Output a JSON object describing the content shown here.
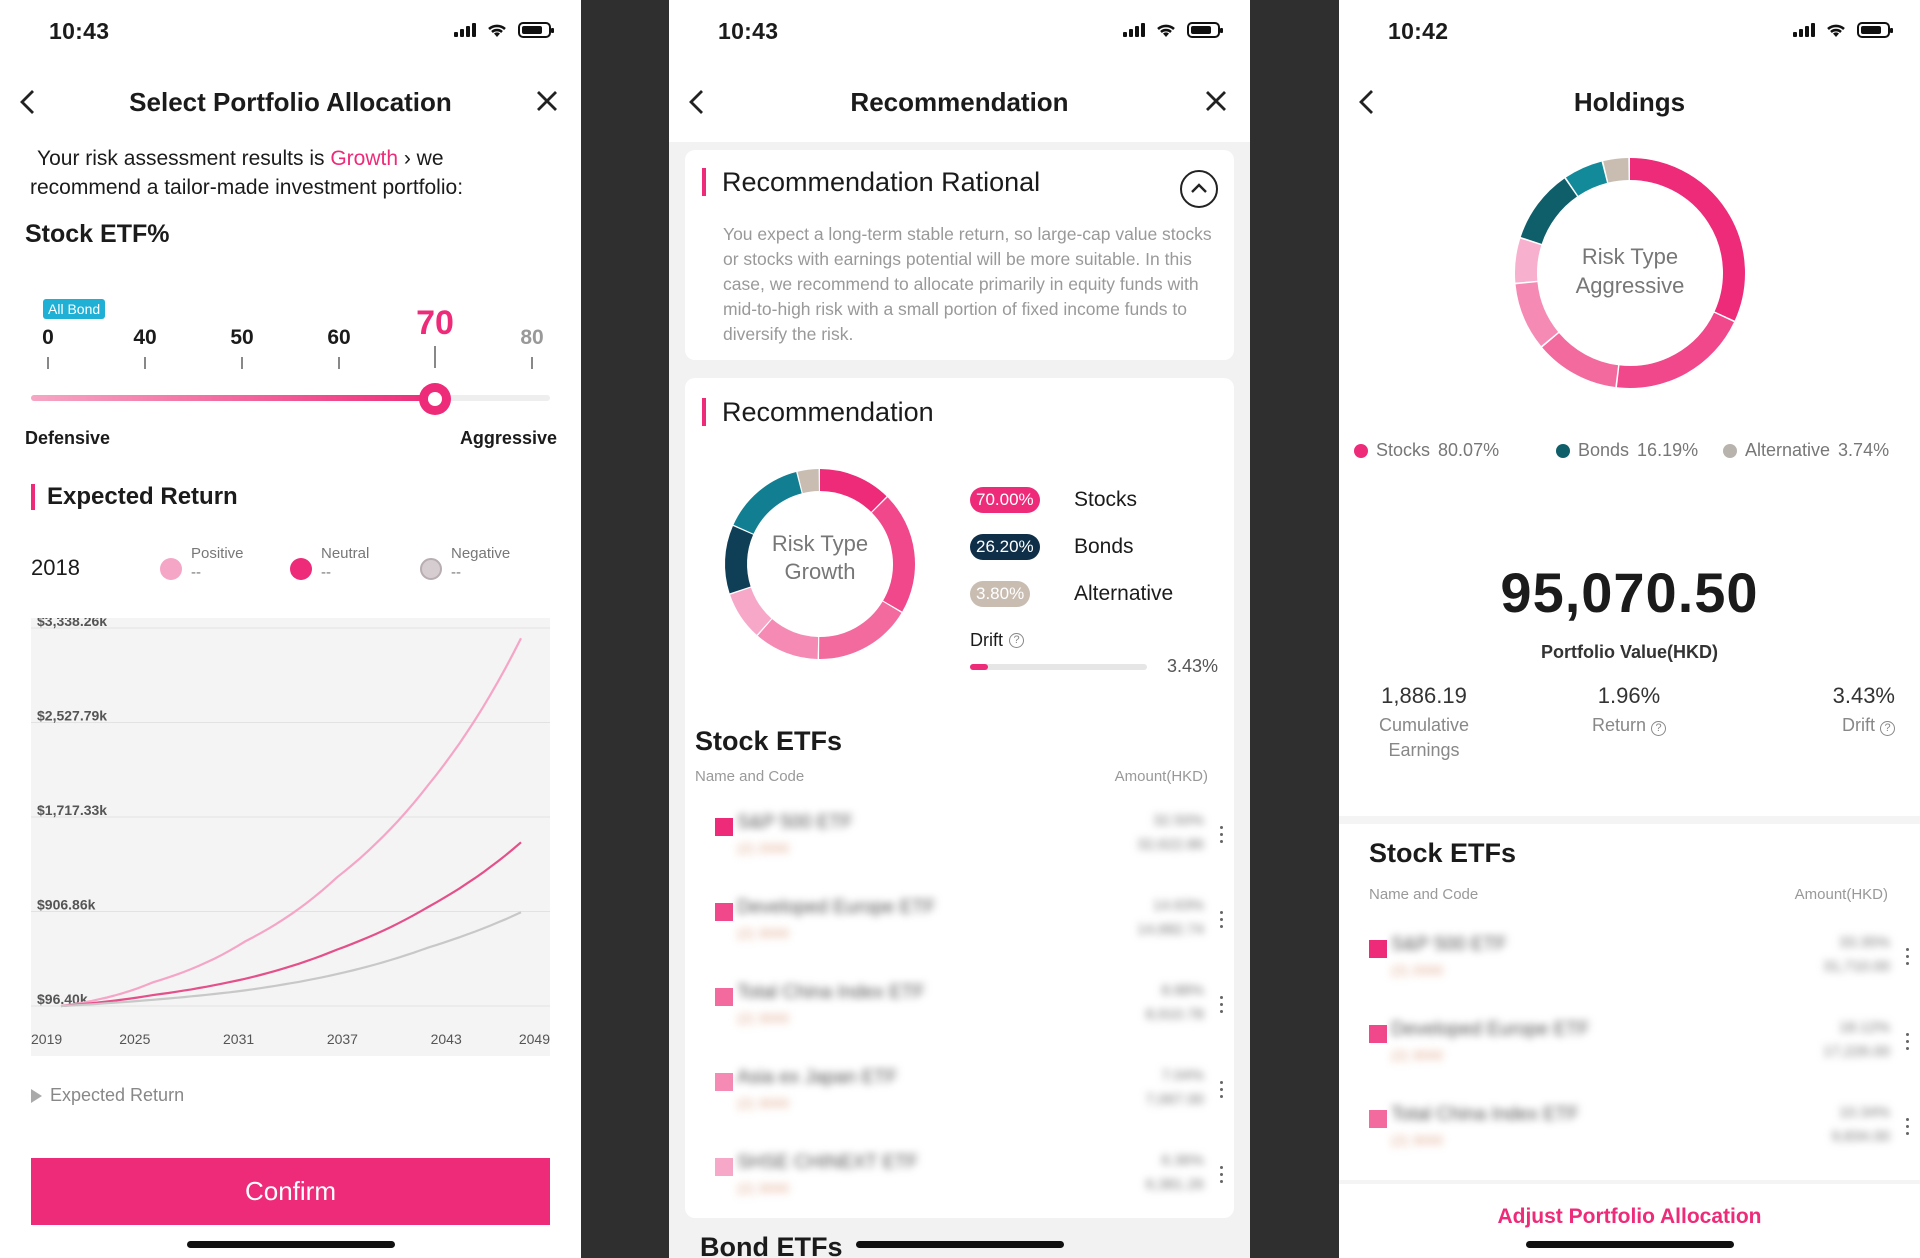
{
  "colors": {
    "accent": "#ee2b79",
    "navy": "#0f5f6b",
    "teal": "#0e8a9c",
    "beige": "#c9bdb2",
    "light_pink": "#f5a5c6"
  },
  "p1": {
    "time": "10:43",
    "title": "Select Portfolio Allocation",
    "intro_prefix": "Your risk assessment results is ",
    "intro_risk": "Growth",
    "intro_mid": " › we",
    "intro_line2": "recommend a tailor-made investment portfolio:",
    "stock_etf_label": "Stock ETF%",
    "all_bond_badge": "All Bond",
    "ticks": [
      "0",
      "40",
      "50",
      "60",
      "70",
      "80"
    ],
    "selected_value": 70,
    "defensive_label": "Defensive",
    "aggressive_label": "Aggressive",
    "expected_return_title": "Expected Return",
    "year": "2018",
    "legend": [
      {
        "name": "Positive",
        "value": "--",
        "color": "#f5a5c6"
      },
      {
        "name": "Neutral",
        "value": "--",
        "color": "#ee2b79"
      },
      {
        "name": "Negative",
        "value": "--",
        "color": "#c9bdb2"
      }
    ],
    "expected_return_toggle": "Expected Return",
    "confirm_label": "Confirm"
  },
  "chart_data": {
    "type": "line",
    "x": [
      2019,
      2025,
      2031,
      2037,
      2043,
      2049
    ],
    "x_tick_labels": [
      "2019",
      "2025",
      "2031",
      "2037",
      "2043",
      "2049"
    ],
    "y_tick_labels": [
      "$3,338.26k",
      "$2,527.79k",
      "$1,717.33k",
      "$906.86k",
      "$96.40k"
    ],
    "ylim": [
      96.4,
      3338.26
    ],
    "series": [
      {
        "name": "Positive",
        "color": "#f5a5c6",
        "values": [
          96,
          300,
          650,
          1200,
          2000,
          3250
        ]
      },
      {
        "name": "Neutral",
        "color": "#e4508a",
        "values": [
          96,
          190,
          330,
          580,
          950,
          1500
        ]
      },
      {
        "name": "Negative",
        "color": "#c8c8c8",
        "values": [
          96,
          150,
          230,
          370,
          600,
          900
        ]
      }
    ],
    "grid": true
  },
  "p2": {
    "time": "10:43",
    "title": "Recommendation",
    "rationale_title": "Recommendation Rational",
    "rationale_text": "You expect a long-term stable return, so large-cap value stocks or stocks with earnings potential will be more suitable. In this case, we recommend to allocate primarily in equity funds with mid-to-high risk with a small portion of fixed income funds to diversify the risk.",
    "rec_title": "Recommendation",
    "donut_line1": "Risk Type",
    "donut_line2": "Growth",
    "allocations": [
      {
        "pct": "70.00%",
        "label": "Stocks",
        "color": "#ee2b79",
        "value": 70.0
      },
      {
        "pct": "26.20%",
        "label": "Bonds",
        "color": "#0f3f57",
        "value": 26.2
      },
      {
        "pct": "3.80%",
        "label": "Alternative",
        "color": "#c9bdb2",
        "value": 3.8
      }
    ],
    "drift_label": "Drift",
    "drift_value": "3.43%",
    "drift_fraction": 0.0343,
    "stock_etfs_title": "Stock ETFs",
    "col_name": "Name and Code",
    "col_amount": "Amount(HKD)",
    "rows": [
      {
        "name": "S&P 500 ETF",
        "code": "(2) 2000",
        "pct": "32.50%",
        "amt": "32,622.86",
        "color": "#ee2b79"
      },
      {
        "name": "Developed Europe ETF",
        "code": "(2) 3000",
        "pct": "14.63%",
        "amt": "14,682.74",
        "color": "#f0488a"
      },
      {
        "name": "Total China Index ETF",
        "code": "(2) 3000",
        "pct": "8.88%",
        "amt": "8,910.78",
        "color": "#f36a9f"
      },
      {
        "name": "Asia ex Japan ETF",
        "code": "(2) 3000",
        "pct": "7.04%",
        "amt": "7,067.00",
        "color": "#f58bb5"
      },
      {
        "name": "SHSE CHINEXT ETF",
        "code": "(2) 3000",
        "pct": "6.36%",
        "amt": "6,381.26",
        "color": "#f7a8c9"
      }
    ],
    "bond_etfs_title": "Bond ETFs"
  },
  "p3": {
    "time": "10:42",
    "title": "Holdings",
    "donut_line1": "Risk Type",
    "donut_line2": "Aggressive",
    "legend": [
      {
        "name": "Stocks",
        "pct": "80.07%",
        "color": "#ee2b79",
        "value": 80.07
      },
      {
        "name": "Bonds",
        "pct": "16.19%",
        "color": "#0f5f6b",
        "value": 16.19
      },
      {
        "name": "Alternative",
        "pct": "3.74%",
        "color": "#c9bdb2",
        "value": 3.74
      }
    ],
    "portfolio_value": "95,070.50",
    "portfolio_value_label": "Portfolio Value(HKD)",
    "stats": [
      {
        "value": "1,886.19",
        "label": "Cumulative Earnings"
      },
      {
        "value": "1.96%",
        "label": "Return"
      },
      {
        "value": "3.43%",
        "label": "Drift"
      }
    ],
    "stock_etfs_title": "Stock ETFs",
    "col_name": "Name and Code",
    "col_amount": "Amount(HKD)",
    "rows": [
      {
        "name": "S&P 500 ETF",
        "code": "(2) 2000",
        "pct": "33.35%",
        "amt": "31,710.00",
        "color": "#ee2b79"
      },
      {
        "name": "Developed Europe ETF",
        "code": "(2) 3000",
        "pct": "18.12%",
        "amt": "17,226.00",
        "color": "#f0488a"
      },
      {
        "name": "Total China Index ETF",
        "code": "(2) 3000",
        "pct": "10.34%",
        "amt": "9,834.00",
        "color": "#f36a9f"
      }
    ],
    "adjust_label": "Adjust Portfolio Allocation"
  }
}
